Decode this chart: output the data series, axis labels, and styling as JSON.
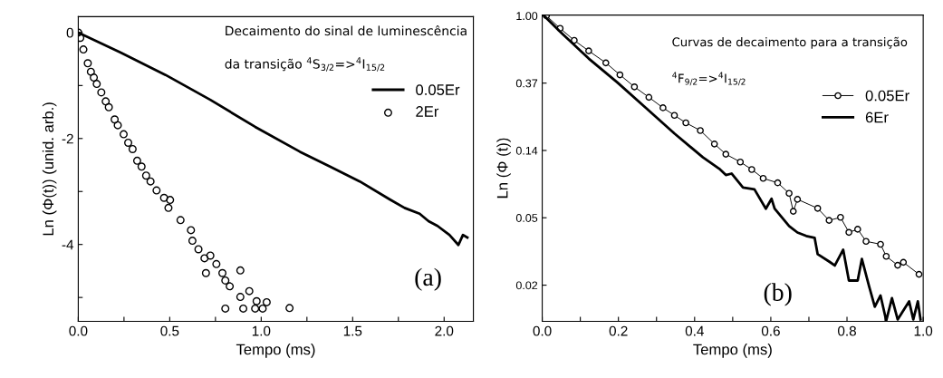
{
  "chart_data": [
    {
      "type": "line",
      "xlabel": "Tempo (ms)",
      "ylabel": "Ln (Φ(t)) (unid. arb.)",
      "xlim": [
        0,
        2.16
      ],
      "ylim": [
        -5.45,
        0.3
      ],
      "xticks": [
        {
          "value": 0,
          "label": "0.0"
        },
        {
          "value": 0.25,
          "label": null
        },
        {
          "value": 0.5,
          "label": "0.5"
        },
        {
          "value": 0.75,
          "label": null
        },
        {
          "value": 1.0,
          "label": "1.0"
        },
        {
          "value": 1.25,
          "label": null
        },
        {
          "value": 1.5,
          "label": "1.5"
        },
        {
          "value": 1.75,
          "label": null
        },
        {
          "value": 2.0,
          "label": "2.0"
        }
      ],
      "yticks": [
        {
          "value": -5,
          "label": null
        },
        -4,
        {
          "value": -3,
          "label": null
        },
        -2,
        {
          "value": -1,
          "label": null
        },
        0
      ],
      "grid": false,
      "legend": "center right",
      "annotations": [
        "Decaimento do sinal de luminescência",
        "da transição $^{4}$S$_{3/2}$=>$^{4}$I$_{15/2}$",
        "(a)"
      ],
      "series": [
        {
          "name": "0.05Er",
          "type": "line",
          "color": "#000000",
          "marker": "none",
          "x": [
            0,
            0.232,
            0.477,
            0.722,
            0.967,
            1.212,
            1.376,
            1.539,
            1.703,
            1.784,
            1.866,
            1.915,
            1.964,
            2.029,
            2.078,
            2.103,
            2.127
          ],
          "values": [
            0,
            -0.38,
            -0.8,
            -1.27,
            -1.78,
            -2.25,
            -2.53,
            -2.81,
            -3.15,
            -3.31,
            -3.42,
            -3.56,
            -3.65,
            -3.82,
            -4.01,
            -3.82,
            -3.87
          ]
        },
        {
          "name": "2Er",
          "type": "scatter",
          "color": "#000000",
          "marker": "circle",
          "x": [
            0,
            0.011,
            0.028,
            0.052,
            0.069,
            0.085,
            0.101,
            0.126,
            0.15,
            0.167,
            0.199,
            0.216,
            0.248,
            0.273,
            0.297,
            0.322,
            0.346,
            0.371,
            0.395,
            0.428,
            0.469,
            0.493,
            0.502,
            0.559,
            0.616,
            0.624,
            0.657,
            0.69,
            0.698,
            0.722,
            0.755,
            0.788,
            0.804,
            0.804,
            0.828,
            0.886,
            0.886,
            0.902,
            0.935,
            0.967,
            0.975,
            1.008,
            1.03,
            1.155
          ],
          "values": [
            0,
            -0.1,
            -0.32,
            -0.58,
            -0.74,
            -0.85,
            -0.97,
            -1.13,
            -1.3,
            -1.41,
            -1.64,
            -1.75,
            -1.92,
            -2.08,
            -2.2,
            -2.42,
            -2.53,
            -2.7,
            -2.81,
            -2.98,
            -3.12,
            -3.31,
            -3.16,
            -3.54,
            -3.73,
            -3.93,
            -4.09,
            -4.26,
            -4.54,
            -4.21,
            -4.37,
            -4.54,
            -4.68,
            -5.21,
            -4.79,
            -4.49,
            -4.99,
            -5.21,
            -4.88,
            -5.21,
            -5.07,
            -5.21,
            -5.09,
            -5.2
          ]
        }
      ]
    },
    {
      "type": "line",
      "xlabel": "Tempo (ms)",
      "ylabel": "Ln (Φ (t))",
      "log": "y",
      "xlim": [
        0,
        1.0
      ],
      "ylim": [
        0.0107,
        1.01
      ],
      "xticks": [
        {
          "value": 0,
          "label": "0.0"
        },
        {
          "value": 0.1,
          "label": null
        },
        {
          "value": 0.2,
          "label": "0.2"
        },
        {
          "value": 0.3,
          "label": null
        },
        {
          "value": 0.4,
          "label": "0.4"
        },
        {
          "value": 0.5,
          "label": null
        },
        {
          "value": 0.6,
          "label": "0.6"
        },
        {
          "value": 0.7,
          "label": null
        },
        {
          "value": 0.8,
          "label": "0.8"
        },
        {
          "value": 0.9,
          "label": null
        },
        {
          "value": 1.0,
          "label": "1.0"
        }
      ],
      "yticks": [
        {
          "value": 0.0183,
          "label": "0.02"
        },
        {
          "value": 0.0498,
          "label": "0.05"
        },
        {
          "value": 0.1353,
          "label": "0.14"
        },
        {
          "value": 0.3679,
          "label": "0.37"
        },
        {
          "value": 1.0,
          "label": "1.00"
        }
      ],
      "grid": false,
      "legend": "upper right",
      "annotations": [
        "Curvas de decaimento para a transição",
        "$^{4}$F$_{9/2}$=>$^{4}$I$_{15/2}$",
        "(b)"
      ],
      "series": [
        {
          "name": "0.05Er",
          "type": "line",
          "color": "#000000",
          "marker": "circle",
          "x": [
            0.011,
            0.047,
            0.084,
            0.122,
            0.167,
            0.204,
            0.242,
            0.28,
            0.317,
            0.347,
            0.377,
            0.415,
            0.452,
            0.482,
            0.52,
            0.55,
            0.58,
            0.618,
            0.648,
            0.659,
            0.67,
            0.723,
            0.753,
            0.783,
            0.805,
            0.828,
            0.85,
            0.888,
            0.903,
            0.933,
            0.948,
            0.989
          ],
          "values": [
            1.0,
            0.83,
            0.694,
            0.594,
            0.497,
            0.416,
            0.348,
            0.298,
            0.255,
            0.228,
            0.204,
            0.182,
            0.149,
            0.128,
            0.114,
            0.102,
            0.0894,
            0.0837,
            0.0716,
            0.0548,
            0.0655,
            0.0573,
            0.0479,
            0.0501,
            0.0401,
            0.042,
            0.0351,
            0.0336,
            0.0281,
            0.0246,
            0.0257,
            0.0215
          ]
        },
        {
          "name": "6Er",
          "type": "line",
          "color": "#000000",
          "marker": "none",
          "x": [
            0.005,
            0.047,
            0.122,
            0.197,
            0.272,
            0.347,
            0.422,
            0.467,
            0.482,
            0.497,
            0.527,
            0.557,
            0.587,
            0.602,
            0.61,
            0.648,
            0.67,
            0.693,
            0.715,
            0.723,
            0.753,
            0.768,
            0.79,
            0.805,
            0.828,
            0.839,
            0.858,
            0.873,
            0.888,
            0.903,
            0.918,
            0.933,
            0.963,
            0.974,
            0.986,
            0.993
          ],
          "values": [
            1.0,
            0.79,
            0.53,
            0.372,
            0.255,
            0.174,
            0.122,
            0.102,
            0.094,
            0.096,
            0.078,
            0.076,
            0.057,
            0.066,
            0.057,
            0.044,
            0.04,
            0.038,
            0.037,
            0.029,
            0.026,
            0.0245,
            0.031,
            0.0196,
            0.0196,
            0.027,
            0.018,
            0.0133,
            0.0157,
            0.0108,
            0.0151,
            0.011,
            0.0144,
            0.011,
            0.0144,
            0.011
          ]
        }
      ]
    }
  ]
}
